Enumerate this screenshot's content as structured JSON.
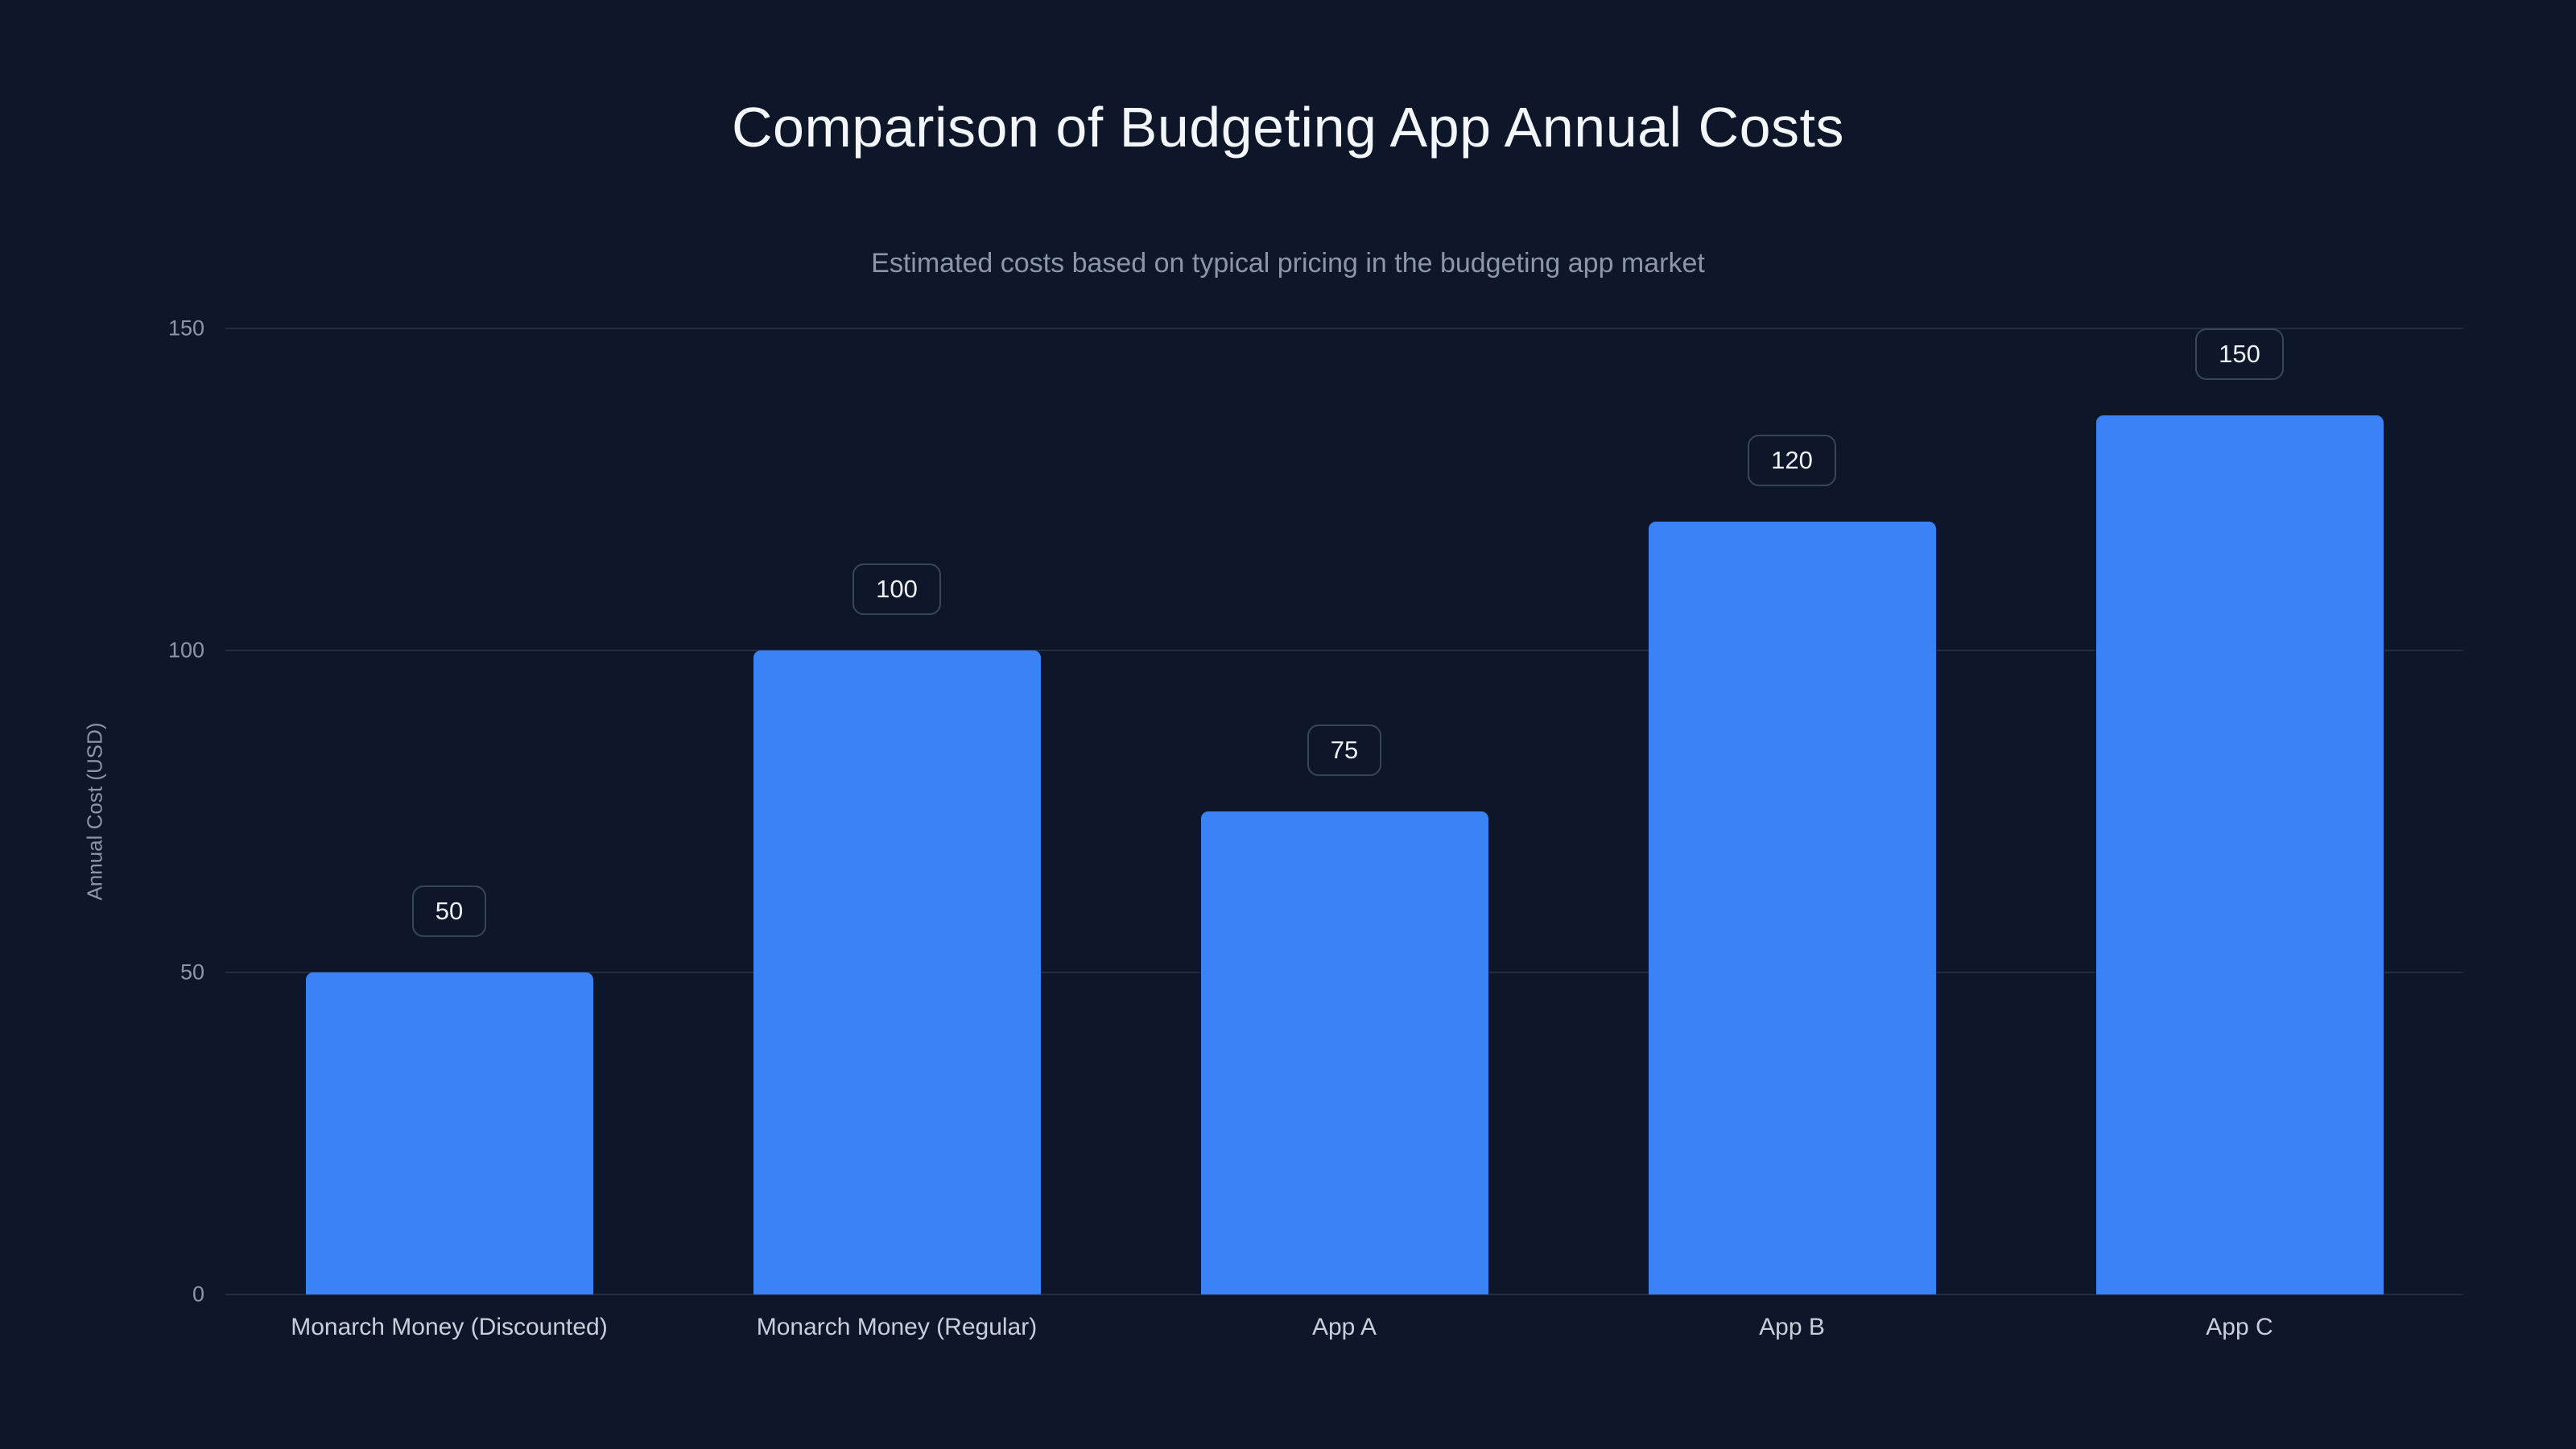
{
  "chart_data": {
    "type": "bar",
    "title": "Comparison of Budgeting App Annual Costs",
    "subtitle": "Estimated costs based on typical pricing in the budgeting app market",
    "categories": [
      "Monarch Money (Discounted)",
      "Monarch Money (Regular)",
      "App A",
      "App B",
      "App C"
    ],
    "values": [
      50,
      100,
      75,
      120,
      150
    ],
    "data_labels": [
      "50",
      "100",
      "75",
      "120",
      "150"
    ],
    "xlabel": "",
    "ylabel": "Annual Cost (USD)",
    "ylim": [
      0,
      150
    ],
    "yticks": [
      0,
      50,
      100,
      150
    ],
    "grid": true,
    "legend": false,
    "layout": {
      "legend_position": "none",
      "background": "dark"
    },
    "colors": {
      "background": "#0d1729",
      "bar": "#3b82f6",
      "gridline": "#1f2b3f",
      "title_text": "#f3f6fa",
      "subtitle_text": "#8b96a6",
      "tick_text": "#8b96a6",
      "category_text": "#c7cfda",
      "badge_border": "#3a4759",
      "badge_text": "#eef2f7"
    }
  }
}
